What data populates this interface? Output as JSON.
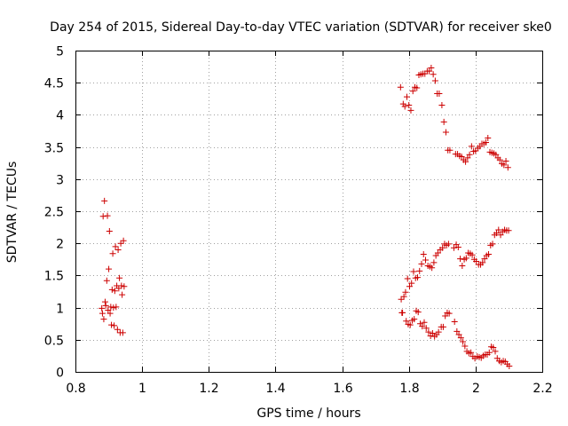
{
  "chart_data": {
    "type": "scatter",
    "title": "Day 254 of 2015, Sidereal Day-to-day VTEC variation (SDTVAR) for receiver ske0",
    "xlabel": "GPS time / hours",
    "ylabel": "SDTVAR / TECUs",
    "xlim": [
      0.8,
      2.2
    ],
    "ylim": [
      0,
      5
    ],
    "grid": true,
    "marker": "+",
    "marker_color": "#cc0000",
    "x_ticks": [
      0.8,
      1.0,
      1.2,
      1.4,
      1.6,
      1.8,
      2.0,
      2.2
    ],
    "x_tick_labels": [
      "0.8",
      "1",
      "1.2",
      "1.4",
      "1.6",
      "1.8",
      "2",
      "2.2"
    ],
    "y_ticks": [
      0,
      0.5,
      1,
      1.5,
      2,
      2.5,
      3,
      3.5,
      4,
      4.5,
      5
    ],
    "y_tick_labels": [
      "0",
      "0.5",
      "1",
      "1.5",
      "2",
      "2.5",
      "3",
      "3.5",
      "4",
      "4.5",
      "5"
    ],
    "series": [
      {
        "name": "SDTVAR",
        "points": [
          [
            0.879,
            0.99
          ],
          [
            0.881,
            0.91
          ],
          [
            0.883,
            2.42
          ],
          [
            0.885,
            0.82
          ],
          [
            0.887,
            2.66
          ],
          [
            0.889,
            1.09
          ],
          [
            0.891,
            1.03
          ],
          [
            0.894,
            1.42
          ],
          [
            0.896,
            2.43
          ],
          [
            0.898,
            0.96
          ],
          [
            0.9,
            1.6
          ],
          [
            0.902,
            2.19
          ],
          [
            0.904,
            0.91
          ],
          [
            0.906,
            1.01
          ],
          [
            0.908,
            0.73
          ],
          [
            0.91,
            1.28
          ],
          [
            0.912,
            1.84
          ],
          [
            0.914,
            1.0
          ],
          [
            0.916,
            0.72
          ],
          [
            0.918,
            1.26
          ],
          [
            0.92,
            1.95
          ],
          [
            0.922,
            1.01
          ],
          [
            0.924,
            1.34
          ],
          [
            0.926,
            0.66
          ],
          [
            0.928,
            1.9
          ],
          [
            0.93,
            1.3
          ],
          [
            0.932,
            1.46
          ],
          [
            0.934,
            0.61
          ],
          [
            0.936,
            2.0
          ],
          [
            0.938,
            1.34
          ],
          [
            0.94,
            1.2
          ],
          [
            0.942,
            0.61
          ],
          [
            0.944,
            2.04
          ],
          [
            0.946,
            1.33
          ],
          [
            1.775,
            4.43
          ],
          [
            1.777,
            1.13
          ],
          [
            1.779,
            0.92
          ],
          [
            1.781,
            0.92
          ],
          [
            1.783,
            4.17
          ],
          [
            1.785,
            1.17
          ],
          [
            1.788,
            4.13
          ],
          [
            1.79,
            1.24
          ],
          [
            1.792,
            0.79
          ],
          [
            1.794,
            4.28
          ],
          [
            1.796,
            1.45
          ],
          [
            1.798,
            0.74
          ],
          [
            1.8,
            4.15
          ],
          [
            1.802,
            1.33
          ],
          [
            1.804,
            0.73
          ],
          [
            1.806,
            4.07
          ],
          [
            1.808,
            1.38
          ],
          [
            1.81,
            0.8
          ],
          [
            1.812,
            4.37
          ],
          [
            1.814,
            1.56
          ],
          [
            1.816,
            0.82
          ],
          [
            1.818,
            4.43
          ],
          [
            1.82,
            1.46
          ],
          [
            1.822,
            0.95
          ],
          [
            1.824,
            4.42
          ],
          [
            1.826,
            1.47
          ],
          [
            1.828,
            0.93
          ],
          [
            1.83,
            4.62
          ],
          [
            1.832,
            1.57
          ],
          [
            1.834,
            0.75
          ],
          [
            1.836,
            4.63
          ],
          [
            1.838,
            1.68
          ],
          [
            1.84,
            0.71
          ],
          [
            1.842,
            4.64
          ],
          [
            1.844,
            1.83
          ],
          [
            1.846,
            0.77
          ],
          [
            1.848,
            4.64
          ],
          [
            1.85,
            1.74
          ],
          [
            1.852,
            0.68
          ],
          [
            1.855,
            4.68
          ],
          [
            1.857,
            1.65
          ],
          [
            1.859,
            0.62
          ],
          [
            1.861,
            4.68
          ],
          [
            1.863,
            1.64
          ],
          [
            1.865,
            0.56
          ],
          [
            1.867,
            4.73
          ],
          [
            1.869,
            1.62
          ],
          [
            1.871,
            0.6
          ],
          [
            1.873,
            4.63
          ],
          [
            1.875,
            1.7
          ],
          [
            1.877,
            0.55
          ],
          [
            1.879,
            4.53
          ],
          [
            1.881,
            1.81
          ],
          [
            1.883,
            0.58
          ],
          [
            1.885,
            4.33
          ],
          [
            1.887,
            1.85
          ],
          [
            1.889,
            0.62
          ],
          [
            1.891,
            4.33
          ],
          [
            1.894,
            1.9
          ],
          [
            1.897,
            0.7
          ],
          [
            1.899,
            4.15
          ],
          [
            1.901,
            1.93
          ],
          [
            1.903,
            0.7
          ],
          [
            1.905,
            3.89
          ],
          [
            1.907,
            1.99
          ],
          [
            1.909,
            0.87
          ],
          [
            1.911,
            3.73
          ],
          [
            1.913,
            1.97
          ],
          [
            1.915,
            0.92
          ],
          [
            1.917,
            3.45
          ],
          [
            1.919,
            1.99
          ],
          [
            1.921,
            0.91
          ],
          [
            1.923,
            3.45
          ],
          [
            1.935,
            1.93
          ],
          [
            1.937,
            0.78
          ],
          [
            1.94,
            3.39
          ],
          [
            1.942,
            1.98
          ],
          [
            1.944,
            0.63
          ],
          [
            1.946,
            3.39
          ],
          [
            1.948,
            1.94
          ],
          [
            1.95,
            0.58
          ],
          [
            1.952,
            3.36
          ],
          [
            1.954,
            1.76
          ],
          [
            1.956,
            0.53
          ],
          [
            1.958,
            3.35
          ],
          [
            1.96,
            1.65
          ],
          [
            1.962,
            0.47
          ],
          [
            1.964,
            3.3
          ],
          [
            1.966,
            1.75
          ],
          [
            1.968,
            0.4
          ],
          [
            1.97,
            3.27
          ],
          [
            1.972,
            1.77
          ],
          [
            1.974,
            0.32
          ],
          [
            1.976,
            3.33
          ],
          [
            1.978,
            1.85
          ],
          [
            1.98,
            0.29
          ],
          [
            1.982,
            3.38
          ],
          [
            1.984,
            1.84
          ],
          [
            1.986,
            0.3
          ],
          [
            1.988,
            3.51
          ],
          [
            1.99,
            1.82
          ],
          [
            1.992,
            0.24
          ],
          [
            1.994,
            3.43
          ],
          [
            1.996,
            1.75
          ],
          [
            1.998,
            0.21
          ],
          [
            2.0,
            3.44
          ],
          [
            2.002,
            1.72
          ],
          [
            2.005,
            0.24
          ],
          [
            2.007,
            3.48
          ],
          [
            2.009,
            1.67
          ],
          [
            2.011,
            0.23
          ],
          [
            2.013,
            3.51
          ],
          [
            2.015,
            1.67
          ],
          [
            2.017,
            0.22
          ],
          [
            2.019,
            3.55
          ],
          [
            2.021,
            1.7
          ],
          [
            2.023,
            0.25
          ],
          [
            2.025,
            3.55
          ],
          [
            2.027,
            1.76
          ],
          [
            2.029,
            0.27
          ],
          [
            2.031,
            3.57
          ],
          [
            2.033,
            1.81
          ],
          [
            2.035,
            0.27
          ],
          [
            2.037,
            3.64
          ],
          [
            2.039,
            1.83
          ],
          [
            2.041,
            0.3
          ],
          [
            2.043,
            3.42
          ],
          [
            2.045,
            1.97
          ],
          [
            2.047,
            0.39
          ],
          [
            2.049,
            3.41
          ],
          [
            2.051,
            1.99
          ],
          [
            2.053,
            0.38
          ],
          [
            2.055,
            3.4
          ],
          [
            2.057,
            2.13
          ],
          [
            2.059,
            0.32
          ],
          [
            2.061,
            3.38
          ],
          [
            2.063,
            2.16
          ],
          [
            2.065,
            0.21
          ],
          [
            2.067,
            3.33
          ],
          [
            2.069,
            2.21
          ],
          [
            2.071,
            0.17
          ],
          [
            2.073,
            3.3
          ],
          [
            2.075,
            2.13
          ],
          [
            2.077,
            0.15
          ],
          [
            2.079,
            3.24
          ],
          [
            2.081,
            2.18
          ],
          [
            2.083,
            0.17
          ],
          [
            2.085,
            3.22
          ],
          [
            2.087,
            2.21
          ],
          [
            2.089,
            0.16
          ],
          [
            2.091,
            3.28
          ],
          [
            2.093,
            2.2
          ],
          [
            2.095,
            0.12
          ],
          [
            2.097,
            3.18
          ],
          [
            2.099,
            2.2
          ],
          [
            2.101,
            0.09
          ]
        ]
      }
    ]
  }
}
